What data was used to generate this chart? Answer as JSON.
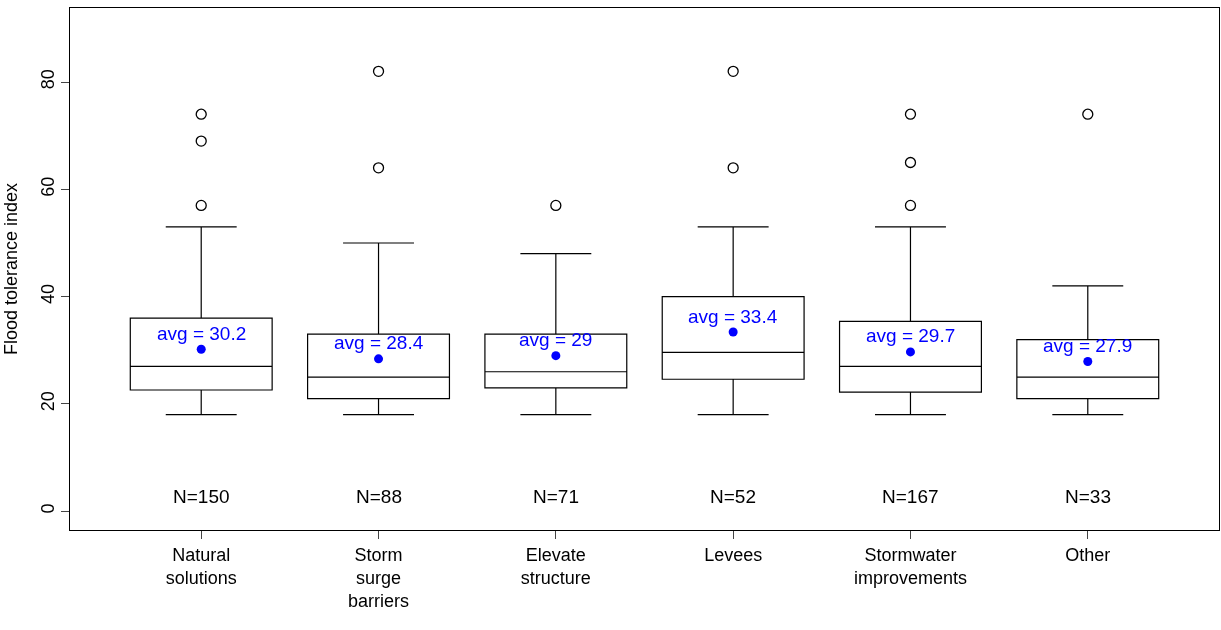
{
  "chart_data": {
    "type": "box",
    "ylabel": "Flood tolerance index",
    "categories": [
      "Natural\nsolutions",
      "Storm\nsurge\nbarriers",
      "Elevate\nstructure",
      "Levees",
      "Stormwater\nimprovements",
      "Other"
    ],
    "boxes": [
      {
        "low": 18,
        "q1": 22.6,
        "median": 27,
        "q3": 36,
        "high": 53,
        "mean": 30.2,
        "outliers": [
          57,
          69,
          74
        ]
      },
      {
        "low": 18,
        "q1": 21,
        "median": 25,
        "q3": 33,
        "high": 50,
        "mean": 28.4,
        "outliers": [
          64,
          82
        ]
      },
      {
        "low": 18,
        "q1": 23,
        "median": 26,
        "q3": 33,
        "high": 48,
        "mean": 29,
        "outliers": [
          57
        ]
      },
      {
        "low": 18,
        "q1": 24.6,
        "median": 29.6,
        "q3": 40,
        "high": 53,
        "mean": 33.4,
        "outliers": [
          64,
          82
        ]
      },
      {
        "low": 18,
        "q1": 22.2,
        "median": 27,
        "q3": 35.4,
        "high": 53,
        "mean": 29.7,
        "outliers": [
          57,
          65,
          74
        ]
      },
      {
        "low": 18,
        "q1": 21,
        "median": 25,
        "q3": 32,
        "high": 42,
        "mean": 27.9,
        "outliers": [
          74
        ]
      }
    ],
    "annotations": [
      "avg = 30.2",
      "avg = 28.4",
      "avg = 29",
      "avg = 33.4",
      "avg = 29.7",
      "avg = 27.9",
      "N=150",
      "N=88",
      "N=71",
      "N=52",
      "N=167",
      "N=33"
    ],
    "ylim": [
      -3.5,
      93.8
    ],
    "yticks": [
      0,
      20,
      40,
      60,
      80
    ]
  }
}
